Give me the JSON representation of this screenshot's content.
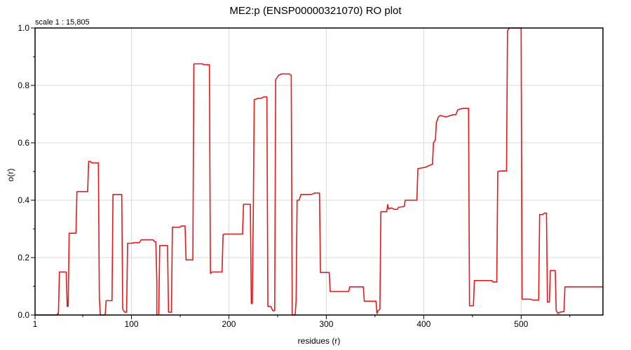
{
  "chart_data": {
    "type": "line",
    "title": "ME2:p (ENSP00000321070) RO plot",
    "scale_text": "scale 1 : 15,805",
    "xlabel": "residues (r)",
    "ylabel": "o(r)",
    "xlim": [
      1,
      584
    ],
    "ylim": [
      0,
      1.0
    ],
    "x_ticks": [
      1,
      100,
      200,
      300,
      400,
      500
    ],
    "x_tick_labels": [
      "1",
      "100",
      "200",
      "300",
      "400",
      "500"
    ],
    "x_minor_ticks": [
      50,
      150,
      250,
      350,
      450,
      550
    ],
    "y_ticks": [
      0,
      0.2,
      0.4,
      0.6,
      0.8,
      1.0
    ],
    "y_tick_labels": [
      "0.0",
      "0.2",
      "0.4",
      "0.6",
      "0.8",
      "1.0"
    ],
    "y_minor_ticks": [
      0.1,
      0.3,
      0.5,
      0.7,
      0.9
    ],
    "grid": true,
    "line_color": "#e31a1c",
    "series": [
      {
        "points": [
          [
            1,
            0
          ],
          [
            24,
            0
          ],
          [
            24,
            0.005
          ],
          [
            25,
            0.005
          ],
          [
            26,
            0.15
          ],
          [
            33,
            0.15
          ],
          [
            34,
            0.03
          ],
          [
            35,
            0.03
          ],
          [
            36,
            0.285
          ],
          [
            43,
            0.285
          ],
          [
            44,
            0.43
          ],
          [
            55,
            0.43
          ],
          [
            56,
            0.535
          ],
          [
            58,
            0.535
          ],
          [
            59,
            0.53
          ],
          [
            66,
            0.53
          ],
          [
            67,
            0.06
          ],
          [
            68,
            0
          ],
          [
            73,
            0
          ],
          [
            74,
            0.05
          ],
          [
            80,
            0.05
          ],
          [
            81,
            0.42
          ],
          [
            90,
            0.42
          ],
          [
            91,
            0.02
          ],
          [
            93,
            0.01
          ],
          [
            95,
            0.01
          ],
          [
            96,
            0.25
          ],
          [
            101,
            0.25
          ],
          [
            102,
            0.252
          ],
          [
            108,
            0.252
          ],
          [
            110,
            0.262
          ],
          [
            122,
            0.262
          ],
          [
            124,
            0.255
          ],
          [
            125,
            0.255
          ],
          [
            126,
            0.12
          ],
          [
            126,
            0
          ],
          [
            128,
            0
          ],
          [
            129,
            0.242
          ],
          [
            137,
            0.242
          ],
          [
            138,
            0.01
          ],
          [
            141,
            0.01
          ],
          [
            142,
            0.306
          ],
          [
            150,
            0.306
          ],
          [
            151,
            0.31
          ],
          [
            155,
            0.31
          ],
          [
            156,
            0.192
          ],
          [
            163,
            0.192
          ],
          [
            164,
            0.875
          ],
          [
            173,
            0.875
          ],
          [
            174,
            0.872
          ],
          [
            180,
            0.872
          ],
          [
            181,
            0.145
          ],
          [
            183,
            0.15
          ],
          [
            193,
            0.15
          ],
          [
            194,
            0.28
          ],
          [
            196,
            0.282
          ],
          [
            214,
            0.282
          ],
          [
            215,
            0.386
          ],
          [
            222,
            0.386
          ],
          [
            223,
            0.04
          ],
          [
            224,
            0.04
          ],
          [
            225,
            0.34
          ],
          [
            226,
            0.75
          ],
          [
            230,
            0.755
          ],
          [
            233,
            0.755
          ],
          [
            236,
            0.76
          ],
          [
            239,
            0.76
          ],
          [
            240,
            0.03
          ],
          [
            243,
            0.03
          ],
          [
            245,
            0.015
          ],
          [
            247,
            0.015
          ],
          [
            248,
            0.82
          ],
          [
            251,
            0.835
          ],
          [
            254,
            0.84
          ],
          [
            262,
            0.84
          ],
          [
            264,
            0.835
          ],
          [
            265,
            0
          ],
          [
            268,
            0
          ],
          [
            269,
            0.05
          ],
          [
            270,
            0.4
          ],
          [
            272,
            0.4
          ],
          [
            274,
            0.42
          ],
          [
            285,
            0.42
          ],
          [
            288,
            0.425
          ],
          [
            293,
            0.425
          ],
          [
            294,
            0.148
          ],
          [
            303,
            0.148
          ],
          [
            304,
            0.082
          ],
          [
            323,
            0.082
          ],
          [
            324,
            0.098
          ],
          [
            338,
            0.098
          ],
          [
            339,
            0.048
          ],
          [
            351,
            0.048
          ],
          [
            352,
            0.005
          ],
          [
            353,
            0.015
          ],
          [
            355,
            0.02
          ],
          [
            356,
            0.36
          ],
          [
            362,
            0.36
          ],
          [
            363,
            0.385
          ],
          [
            364,
            0.37
          ],
          [
            367,
            0.373
          ],
          [
            370,
            0.368
          ],
          [
            373,
            0.368
          ],
          [
            374,
            0.375
          ],
          [
            380,
            0.378
          ],
          [
            381,
            0.4
          ],
          [
            393,
            0.4
          ],
          [
            394,
            0.51
          ],
          [
            402,
            0.515
          ],
          [
            405,
            0.52
          ],
          [
            409,
            0.525
          ],
          [
            410,
            0.6
          ],
          [
            412,
            0.61
          ],
          [
            413,
            0.67
          ],
          [
            415,
            0.69
          ],
          [
            417,
            0.695
          ],
          [
            423,
            0.69
          ],
          [
            430,
            0.698
          ],
          [
            433,
            0.698
          ],
          [
            435,
            0.715
          ],
          [
            440,
            0.72
          ],
          [
            446,
            0.72
          ],
          [
            447,
            0.032
          ],
          [
            451,
            0.032
          ],
          [
            452,
            0.12
          ],
          [
            470,
            0.12
          ],
          [
            471,
            0.115
          ],
          [
            475,
            0.115
          ],
          [
            476,
            0.5
          ],
          [
            479,
            0.502
          ],
          [
            485,
            0.502
          ],
          [
            486,
            0.99
          ],
          [
            488,
            1.0
          ],
          [
            500,
            1.0
          ],
          [
            501,
            0.055
          ],
          [
            510,
            0.055
          ],
          [
            512,
            0.052
          ],
          [
            518,
            0.052
          ],
          [
            519,
            0.35
          ],
          [
            522,
            0.35
          ],
          [
            524,
            0.355
          ],
          [
            526,
            0.355
          ],
          [
            527,
            0.045
          ],
          [
            529,
            0.045
          ],
          [
            530,
            0.155
          ],
          [
            535,
            0.155
          ],
          [
            536,
            0.015
          ],
          [
            538,
            0.005
          ],
          [
            540,
            0.01
          ],
          [
            544,
            0.012
          ],
          [
            545,
            0.098
          ],
          [
            584,
            0.098
          ]
        ]
      }
    ]
  }
}
